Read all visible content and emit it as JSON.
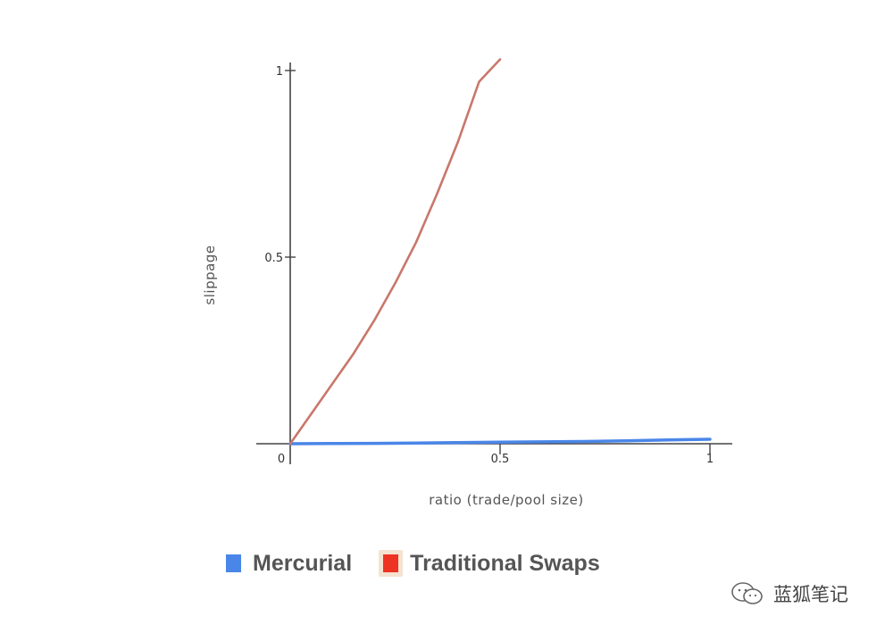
{
  "chart_data": {
    "type": "line",
    "title": "",
    "xlabel": "ratio (trade/pool size)",
    "ylabel": "slippage",
    "xlim": [
      0,
      1
    ],
    "ylim": [
      0,
      1
    ],
    "x_ticks": [
      "0",
      "0.5",
      "1"
    ],
    "y_ticks": [
      "0.5",
      "1"
    ],
    "grid": false,
    "legend_position": "bottom",
    "series": [
      {
        "name": "Mercurial",
        "color": "#4a86e8",
        "x": [
          0,
          0.1,
          0.2,
          0.3,
          0.4,
          0.5,
          0.6,
          0.7,
          0.8,
          0.9,
          1.0
        ],
        "y": [
          0,
          0.0005,
          0.001,
          0.002,
          0.003,
          0.004,
          0.005,
          0.006,
          0.008,
          0.01,
          0.012
        ]
      },
      {
        "name": "Traditional Swaps",
        "color": "#c9776b",
        "x": [
          0,
          0.05,
          0.1,
          0.15,
          0.2,
          0.25,
          0.3,
          0.35,
          0.4,
          0.45,
          0.5
        ],
        "y": [
          0,
          0.08,
          0.16,
          0.24,
          0.33,
          0.43,
          0.54,
          0.67,
          0.81,
          0.97,
          1.03
        ]
      }
    ]
  },
  "legend": {
    "items": [
      {
        "label": "Mercurial",
        "color": "#4a86e8",
        "bg": "#ffffff"
      },
      {
        "label": "Traditional Swaps",
        "color": "#ee3322",
        "bg": "#f3e3d0"
      }
    ]
  },
  "watermark": {
    "text": "蓝狐笔记",
    "icon": "wechat-icon"
  }
}
